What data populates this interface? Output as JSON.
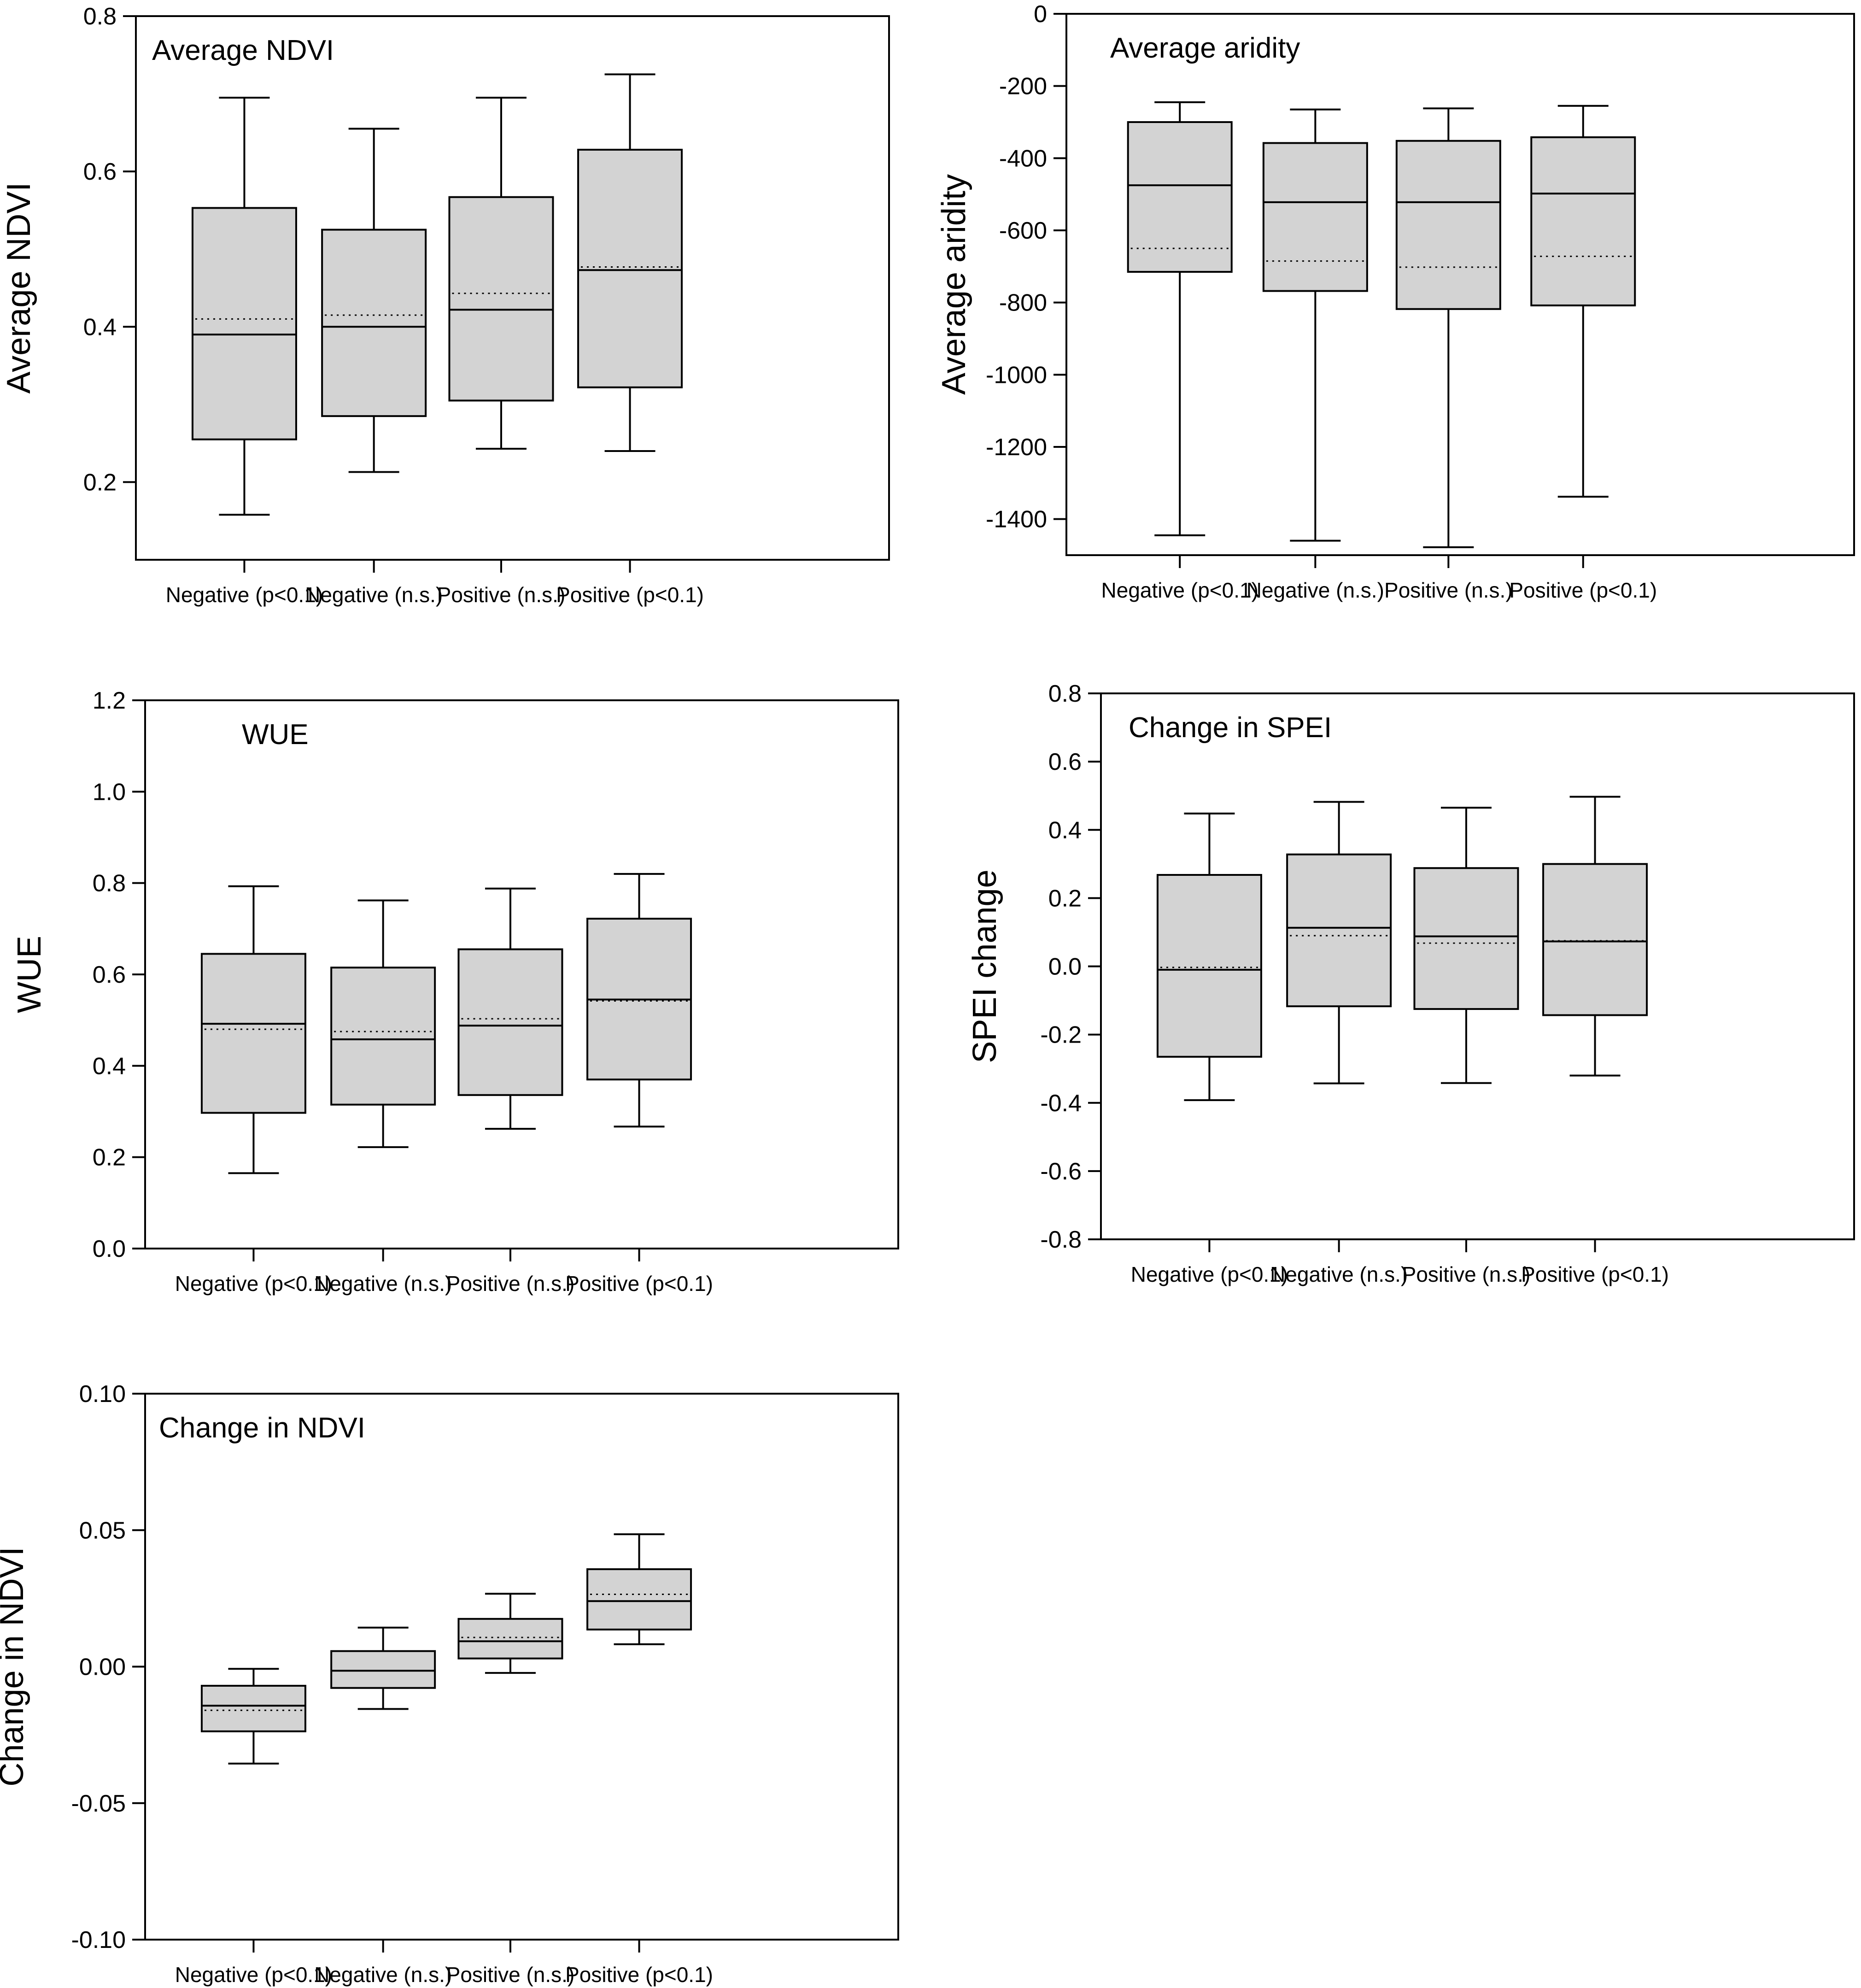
{
  "colors": {
    "box_fill": "#d3d3d3",
    "stroke": "#000000",
    "background": "#ffffff"
  },
  "chart_data": [
    {
      "type": "box",
      "panel_title": "Average NDVI",
      "ylabel": "Average NDVI",
      "xlabel": "",
      "categories": [
        "Negative (p<0.1)",
        "Negative (n.s.)",
        "Positive (n.s.)",
        "Positive (p<0.1)"
      ],
      "ylim": [
        0.1,
        0.8
      ],
      "yticks": [
        0.2,
        0.4,
        0.6,
        0.8
      ],
      "ytick_labels": [
        "0.2",
        "0.4",
        "0.6",
        "0.8"
      ],
      "boxes": [
        {
          "whisker_low": 0.158,
          "q1": 0.255,
          "median": 0.39,
          "q3": 0.553,
          "whisker_high": 0.695,
          "mean": 0.41
        },
        {
          "whisker_low": 0.213,
          "q1": 0.285,
          "median": 0.4,
          "q3": 0.525,
          "whisker_high": 0.655,
          "mean": 0.415
        },
        {
          "whisker_low": 0.243,
          "q1": 0.305,
          "median": 0.422,
          "q3": 0.567,
          "whisker_high": 0.695,
          "mean": 0.443
        },
        {
          "whisker_low": 0.24,
          "q1": 0.322,
          "median": 0.473,
          "q3": 0.628,
          "whisker_high": 0.725,
          "mean": 0.477
        }
      ]
    },
    {
      "type": "box",
      "panel_title": "Average aridity",
      "ylabel": "Average aridity",
      "xlabel": "",
      "categories": [
        "Negative (p<0.1)",
        "Negative (n.s.)",
        "Positive (n.s.)",
        "Positive (p<0.1)"
      ],
      "ylim": [
        -1500,
        0
      ],
      "yticks": [
        0,
        -200,
        -400,
        -600,
        -800,
        -1000,
        -1200,
        -1400
      ],
      "ytick_labels": [
        "0",
        "-200",
        "-400",
        "-600",
        "-800",
        "-1000",
        "-1200",
        "-1400"
      ],
      "boxes": [
        {
          "whisker_low": -1445,
          "q1": -715,
          "median": -475,
          "q3": -300,
          "whisker_high": -245,
          "mean": -650
        },
        {
          "whisker_low": -1460,
          "q1": -768,
          "median": -522,
          "q3": -358,
          "whisker_high": -265,
          "mean": -685
        },
        {
          "whisker_low": -1478,
          "q1": -818,
          "median": -522,
          "q3": -352,
          "whisker_high": -262,
          "mean": -702
        },
        {
          "whisker_low": -1338,
          "q1": -808,
          "median": -498,
          "q3": -342,
          "whisker_high": -255,
          "mean": -672
        }
      ]
    },
    {
      "type": "box",
      "panel_title": "WUE",
      "ylabel": "WUE",
      "xlabel": "",
      "categories": [
        "Negative (p<0.1)",
        "Negative (n.s.)",
        "Positive (n.s.)",
        "Positive (p<0.1)"
      ],
      "ylim": [
        0.0,
        1.2
      ],
      "yticks": [
        0.0,
        0.2,
        0.4,
        0.6,
        0.8,
        1.0,
        1.2
      ],
      "ytick_labels": [
        "0.0",
        "0.2",
        "0.4",
        "0.6",
        "0.8",
        "1.0",
        "1.2"
      ],
      "boxes": [
        {
          "whisker_low": 0.165,
          "q1": 0.297,
          "median": 0.492,
          "q3": 0.645,
          "whisker_high": 0.793,
          "mean": 0.48
        },
        {
          "whisker_low": 0.222,
          "q1": 0.315,
          "median": 0.458,
          "q3": 0.615,
          "whisker_high": 0.762,
          "mean": 0.475
        },
        {
          "whisker_low": 0.262,
          "q1": 0.336,
          "median": 0.488,
          "q3": 0.655,
          "whisker_high": 0.788,
          "mean": 0.503
        },
        {
          "whisker_low": 0.267,
          "q1": 0.37,
          "median": 0.545,
          "q3": 0.722,
          "whisker_high": 0.82,
          "mean": 0.542
        }
      ]
    },
    {
      "type": "box",
      "panel_title": "Change in SPEI",
      "ylabel": "SPEI change",
      "xlabel": "",
      "categories": [
        "Negative (p<0.1)",
        "Negative (n.s.)",
        "Positive (n.s.)",
        "Positive (p<0.1)"
      ],
      "ylim": [
        -0.8,
        0.8
      ],
      "yticks": [
        0.8,
        0.6,
        0.4,
        0.2,
        0.0,
        -0.2,
        -0.4,
        -0.6,
        -0.8
      ],
      "ytick_labels": [
        "0.8",
        "0.6",
        "0.4",
        "0.2",
        "0.0",
        "-0.2",
        "-0.4",
        "-0.6",
        "-0.8"
      ],
      "boxes": [
        {
          "whisker_low": -0.392,
          "q1": -0.265,
          "median": -0.01,
          "q3": 0.268,
          "whisker_high": 0.448,
          "mean": -0.003
        },
        {
          "whisker_low": -0.343,
          "q1": -0.117,
          "median": 0.113,
          "q3": 0.328,
          "whisker_high": 0.482,
          "mean": 0.09
        },
        {
          "whisker_low": -0.342,
          "q1": -0.125,
          "median": 0.088,
          "q3": 0.288,
          "whisker_high": 0.465,
          "mean": 0.068
        },
        {
          "whisker_low": -0.32,
          "q1": -0.143,
          "median": 0.073,
          "q3": 0.3,
          "whisker_high": 0.497,
          "mean": 0.075
        }
      ]
    },
    {
      "type": "box",
      "panel_title": "Change in NDVI",
      "ylabel": "Change in NDVI",
      "xlabel": "",
      "categories": [
        "Negative (p<0.1)",
        "Negative (n.s.)",
        "Positive (n.s.)",
        "Positive (p<0.1)"
      ],
      "ylim": [
        -0.1,
        0.1
      ],
      "yticks": [
        0.1,
        0.05,
        0.0,
        -0.05,
        -0.1
      ],
      "ytick_labels": [
        "0.10",
        "0.05",
        "0.00",
        "-0.05",
        "-0.10"
      ],
      "boxes": [
        {
          "whisker_low": -0.0355,
          "q1": -0.0237,
          "median": -0.0143,
          "q3": -0.007,
          "whisker_high": -0.0008,
          "mean": -0.016
        },
        {
          "whisker_low": -0.0155,
          "q1": -0.0078,
          "median": -0.0015,
          "q3": 0.0057,
          "whisker_high": 0.0143,
          "mean": -0.0015
        },
        {
          "whisker_low": -0.0023,
          "q1": 0.003,
          "median": 0.0093,
          "q3": 0.0175,
          "whisker_high": 0.0267,
          "mean": 0.0107
        },
        {
          "whisker_low": 0.0082,
          "q1": 0.0136,
          "median": 0.024,
          "q3": 0.0357,
          "whisker_high": 0.0485,
          "mean": 0.0265
        }
      ]
    }
  ]
}
